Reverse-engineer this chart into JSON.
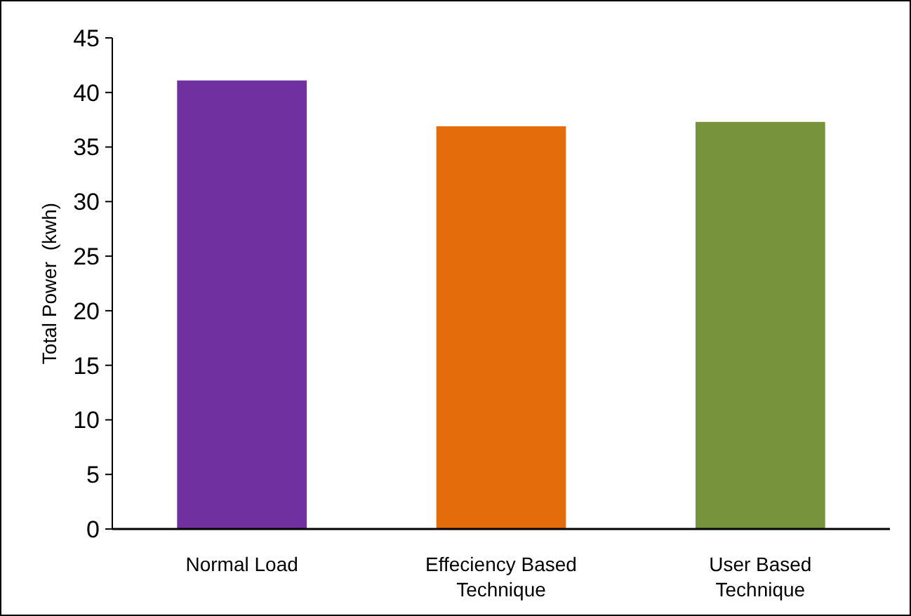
{
  "chart_data": {
    "type": "bar",
    "ylabel": "Total Power  (kwh)",
    "categories": [
      "Normal Load",
      "Effeciency Based Technique",
      "User Based Technique"
    ],
    "values": [
      41.1,
      36.9,
      37.3
    ],
    "colors": [
      "#7030a0",
      "#e46c0a",
      "#77933c"
    ],
    "ylim": [
      0,
      45
    ],
    "yticks": [
      0,
      5,
      10,
      15,
      20,
      25,
      30,
      35,
      40,
      45
    ],
    "grid": false
  }
}
